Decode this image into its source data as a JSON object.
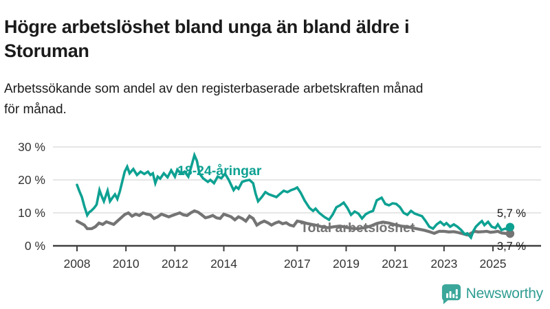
{
  "header": {
    "title_line1": "Högre arbetslöshet bland unga än bland äldre i",
    "title_line2": "Storuman",
    "subtitle_line1": "Arbetssökande som andel av den registerbaserade arbetskraften månad",
    "subtitle_line2": "för månad."
  },
  "footer": {
    "brand": "Newsworthy",
    "logo_icon": "bar-chart-speech-bubble-icon",
    "brand_color": "#2f9d92"
  },
  "colors": {
    "youth_line": "#0ea192",
    "total_line": "#747474",
    "grid": "#d8d8d8",
    "axis": "#3f3f3f",
    "tick_text": "#343434",
    "annotation_text": "#161616",
    "background": "#ffffff"
  },
  "chart_data": {
    "type": "line",
    "title": "Högre arbetslöshet bland unga än bland äldre i Storuman",
    "xlabel": "",
    "ylabel": "",
    "x_axis": {
      "tick_values": [
        2008,
        2010,
        2012,
        2014,
        2017,
        2019,
        2021,
        2023,
        2025
      ],
      "tick_labels": [
        "2008",
        "2010",
        "2012",
        "2014",
        "2017",
        "2019",
        "2021",
        "2023",
        "2025"
      ],
      "range": [
        2008,
        2025.75
      ]
    },
    "y_axis": {
      "tick_values": [
        0,
        10,
        20,
        30
      ],
      "tick_labels": [
        "0 %",
        "10 %",
        "20 %",
        "30 %"
      ],
      "range": [
        0,
        31.5
      ],
      "grid": true
    },
    "legend_position": "inline-labels",
    "series": [
      {
        "name": "18-24-åringar",
        "color": "#0ea192",
        "end_value": 5.7,
        "end_label": "5,7 %",
        "points": [
          [
            2008.0,
            18.5
          ],
          [
            2008.1,
            16.5
          ],
          [
            2008.2,
            14.8
          ],
          [
            2008.3,
            12.0
          ],
          [
            2008.42,
            9.3
          ],
          [
            2008.5,
            10.2
          ],
          [
            2008.58,
            10.6
          ],
          [
            2008.7,
            11.5
          ],
          [
            2008.8,
            12.5
          ],
          [
            2008.92,
            16.9
          ],
          [
            2009.0,
            15.2
          ],
          [
            2009.1,
            13.5
          ],
          [
            2009.25,
            16.7
          ],
          [
            2009.35,
            13.5
          ],
          [
            2009.45,
            14.6
          ],
          [
            2009.55,
            15.6
          ],
          [
            2009.65,
            14.2
          ],
          [
            2009.75,
            16.5
          ],
          [
            2009.85,
            19.5
          ],
          [
            2009.95,
            22.5
          ],
          [
            2010.05,
            24.0
          ],
          [
            2010.15,
            22.0
          ],
          [
            2010.3,
            23.3
          ],
          [
            2010.45,
            21.5
          ],
          [
            2010.6,
            22.5
          ],
          [
            2010.75,
            21.8
          ],
          [
            2010.9,
            22.5
          ],
          [
            2011.0,
            21.5
          ],
          [
            2011.1,
            22.0
          ],
          [
            2011.2,
            19.0
          ],
          [
            2011.3,
            21.0
          ],
          [
            2011.4,
            20.4
          ],
          [
            2011.55,
            22.0
          ],
          [
            2011.7,
            20.8
          ],
          [
            2011.85,
            22.9
          ],
          [
            2012.0,
            21.0
          ],
          [
            2012.1,
            23.1
          ],
          [
            2012.25,
            21.9
          ],
          [
            2012.4,
            22.5
          ],
          [
            2012.55,
            21.0
          ],
          [
            2012.65,
            23.5
          ],
          [
            2012.8,
            27.5
          ],
          [
            2012.9,
            25.8
          ],
          [
            2013.0,
            22.0
          ],
          [
            2013.15,
            20.5
          ],
          [
            2013.35,
            19.4
          ],
          [
            2013.45,
            20.0
          ],
          [
            2013.6,
            19.0
          ],
          [
            2013.75,
            21.0
          ],
          [
            2013.9,
            20.5
          ],
          [
            2014.05,
            21.9
          ],
          [
            2014.2,
            20.0
          ],
          [
            2014.4,
            16.9
          ],
          [
            2014.5,
            17.9
          ],
          [
            2014.6,
            17.3
          ],
          [
            2014.75,
            19.4
          ],
          [
            2014.9,
            19.8
          ],
          [
            2015.05,
            20.0
          ],
          [
            2015.2,
            19.0
          ],
          [
            2015.3,
            15.8
          ],
          [
            2015.4,
            13.5
          ],
          [
            2015.55,
            14.8
          ],
          [
            2015.7,
            16.3
          ],
          [
            2015.85,
            15.6
          ],
          [
            2016.0,
            15.2
          ],
          [
            2016.15,
            14.8
          ],
          [
            2016.3,
            15.8
          ],
          [
            2016.45,
            16.7
          ],
          [
            2016.6,
            16.3
          ],
          [
            2016.75,
            16.9
          ],
          [
            2016.9,
            17.3
          ],
          [
            2017.0,
            17.7
          ],
          [
            2017.15,
            16.0
          ],
          [
            2017.3,
            13.8
          ],
          [
            2017.5,
            11.5
          ],
          [
            2017.65,
            10.6
          ],
          [
            2017.75,
            11.3
          ],
          [
            2017.9,
            10.0
          ],
          [
            2018.1,
            8.8
          ],
          [
            2018.3,
            7.9
          ],
          [
            2018.45,
            9.5
          ],
          [
            2018.6,
            11.7
          ],
          [
            2018.75,
            12.3
          ],
          [
            2018.9,
            13.1
          ],
          [
            2019.05,
            11.5
          ],
          [
            2019.2,
            9.4
          ],
          [
            2019.35,
            10.4
          ],
          [
            2019.5,
            9.8
          ],
          [
            2019.65,
            8.3
          ],
          [
            2019.8,
            9.6
          ],
          [
            2019.95,
            10.2
          ],
          [
            2020.1,
            10.6
          ],
          [
            2020.25,
            13.8
          ],
          [
            2020.45,
            14.6
          ],
          [
            2020.6,
            12.7
          ],
          [
            2020.75,
            12.3
          ],
          [
            2020.9,
            12.9
          ],
          [
            2021.05,
            12.7
          ],
          [
            2021.2,
            11.7
          ],
          [
            2021.35,
            10.0
          ],
          [
            2021.5,
            9.4
          ],
          [
            2021.65,
            10.6
          ],
          [
            2021.8,
            9.8
          ],
          [
            2021.95,
            9.4
          ],
          [
            2022.1,
            9.0
          ],
          [
            2022.25,
            7.5
          ],
          [
            2022.4,
            5.8
          ],
          [
            2022.55,
            5.2
          ],
          [
            2022.7,
            6.5
          ],
          [
            2022.85,
            7.3
          ],
          [
            2023.0,
            6.3
          ],
          [
            2023.1,
            6.9
          ],
          [
            2023.25,
            5.8
          ],
          [
            2023.4,
            6.5
          ],
          [
            2023.55,
            5.8
          ],
          [
            2023.7,
            4.8
          ],
          [
            2023.85,
            3.5
          ],
          [
            2023.95,
            3.8
          ],
          [
            2024.1,
            2.5
          ],
          [
            2024.2,
            4.5
          ],
          [
            2024.3,
            5.8
          ],
          [
            2024.45,
            6.9
          ],
          [
            2024.55,
            7.5
          ],
          [
            2024.65,
            6.3
          ],
          [
            2024.8,
            7.3
          ],
          [
            2024.95,
            5.8
          ],
          [
            2025.1,
            5.4
          ],
          [
            2025.2,
            6.5
          ],
          [
            2025.35,
            4.8
          ],
          [
            2025.5,
            5.2
          ],
          [
            2025.6,
            4.9
          ],
          [
            2025.7,
            5.7
          ]
        ]
      },
      {
        "name": "Total arbetslöshet",
        "color": "#747474",
        "end_value": 3.7,
        "end_label": "3,7 %",
        "points": [
          [
            2008.0,
            7.5
          ],
          [
            2008.15,
            6.9
          ],
          [
            2008.3,
            6.3
          ],
          [
            2008.42,
            5.2
          ],
          [
            2008.6,
            5.2
          ],
          [
            2008.75,
            5.8
          ],
          [
            2008.9,
            6.9
          ],
          [
            2009.05,
            6.5
          ],
          [
            2009.2,
            7.3
          ],
          [
            2009.35,
            6.9
          ],
          [
            2009.5,
            6.5
          ],
          [
            2009.65,
            7.5
          ],
          [
            2009.8,
            8.5
          ],
          [
            2009.95,
            9.5
          ],
          [
            2010.1,
            10.0
          ],
          [
            2010.25,
            9.0
          ],
          [
            2010.4,
            9.6
          ],
          [
            2010.55,
            9.2
          ],
          [
            2010.7,
            10.0
          ],
          [
            2010.85,
            9.6
          ],
          [
            2011.0,
            9.4
          ],
          [
            2011.15,
            8.3
          ],
          [
            2011.3,
            8.8
          ],
          [
            2011.45,
            9.6
          ],
          [
            2011.6,
            9.2
          ],
          [
            2011.75,
            8.8
          ],
          [
            2011.9,
            9.2
          ],
          [
            2012.05,
            9.6
          ],
          [
            2012.2,
            10.0
          ],
          [
            2012.35,
            9.4
          ],
          [
            2012.5,
            9.2
          ],
          [
            2012.65,
            10.0
          ],
          [
            2012.8,
            10.6
          ],
          [
            2012.95,
            10.2
          ],
          [
            2013.1,
            9.4
          ],
          [
            2013.25,
            8.5
          ],
          [
            2013.4,
            8.8
          ],
          [
            2013.55,
            9.2
          ],
          [
            2013.7,
            8.5
          ],
          [
            2013.85,
            8.3
          ],
          [
            2014.0,
            9.6
          ],
          [
            2014.15,
            9.2
          ],
          [
            2014.3,
            8.8
          ],
          [
            2014.45,
            7.9
          ],
          [
            2014.6,
            8.8
          ],
          [
            2014.75,
            8.3
          ],
          [
            2014.9,
            7.5
          ],
          [
            2015.05,
            9.0
          ],
          [
            2015.2,
            8.3
          ],
          [
            2015.35,
            6.3
          ],
          [
            2015.5,
            7.0
          ],
          [
            2015.65,
            7.5
          ],
          [
            2015.8,
            7.0
          ],
          [
            2015.95,
            6.3
          ],
          [
            2016.1,
            6.9
          ],
          [
            2016.25,
            7.3
          ],
          [
            2016.4,
            6.7
          ],
          [
            2016.55,
            7.0
          ],
          [
            2016.7,
            6.3
          ],
          [
            2016.85,
            6.0
          ],
          [
            2017.0,
            7.5
          ],
          [
            2017.2,
            7.2
          ],
          [
            2017.4,
            6.8
          ],
          [
            2017.6,
            6.5
          ],
          [
            2017.8,
            6.2
          ],
          [
            2018.0,
            5.8
          ],
          [
            2018.25,
            5.5
          ],
          [
            2018.5,
            5.8
          ],
          [
            2018.75,
            6.0
          ],
          [
            2019.0,
            5.6
          ],
          [
            2019.25,
            5.3
          ],
          [
            2019.5,
            5.2
          ],
          [
            2019.75,
            5.5
          ],
          [
            2020.0,
            6.0
          ],
          [
            2020.25,
            6.8
          ],
          [
            2020.5,
            7.2
          ],
          [
            2020.75,
            6.9
          ],
          [
            2021.0,
            6.4
          ],
          [
            2021.25,
            6.0
          ],
          [
            2021.5,
            5.8
          ],
          [
            2021.75,
            5.4
          ],
          [
            2022.0,
            5.0
          ],
          [
            2022.2,
            4.7
          ],
          [
            2022.4,
            4.3
          ],
          [
            2022.6,
            3.8
          ],
          [
            2022.8,
            4.4
          ],
          [
            2023.0,
            4.4
          ],
          [
            2023.2,
            4.2
          ],
          [
            2023.4,
            4.3
          ],
          [
            2023.6,
            4.0
          ],
          [
            2023.8,
            3.6
          ],
          [
            2023.95,
            3.3
          ],
          [
            2024.1,
            3.8
          ],
          [
            2024.25,
            4.4
          ],
          [
            2024.4,
            4.2
          ],
          [
            2024.6,
            4.3
          ],
          [
            2024.75,
            4.4
          ],
          [
            2024.9,
            4.1
          ],
          [
            2025.05,
            4.2
          ],
          [
            2025.2,
            4.4
          ],
          [
            2025.35,
            3.9
          ],
          [
            2025.5,
            3.8
          ],
          [
            2025.6,
            3.6
          ],
          [
            2025.7,
            3.7
          ]
        ]
      }
    ]
  }
}
